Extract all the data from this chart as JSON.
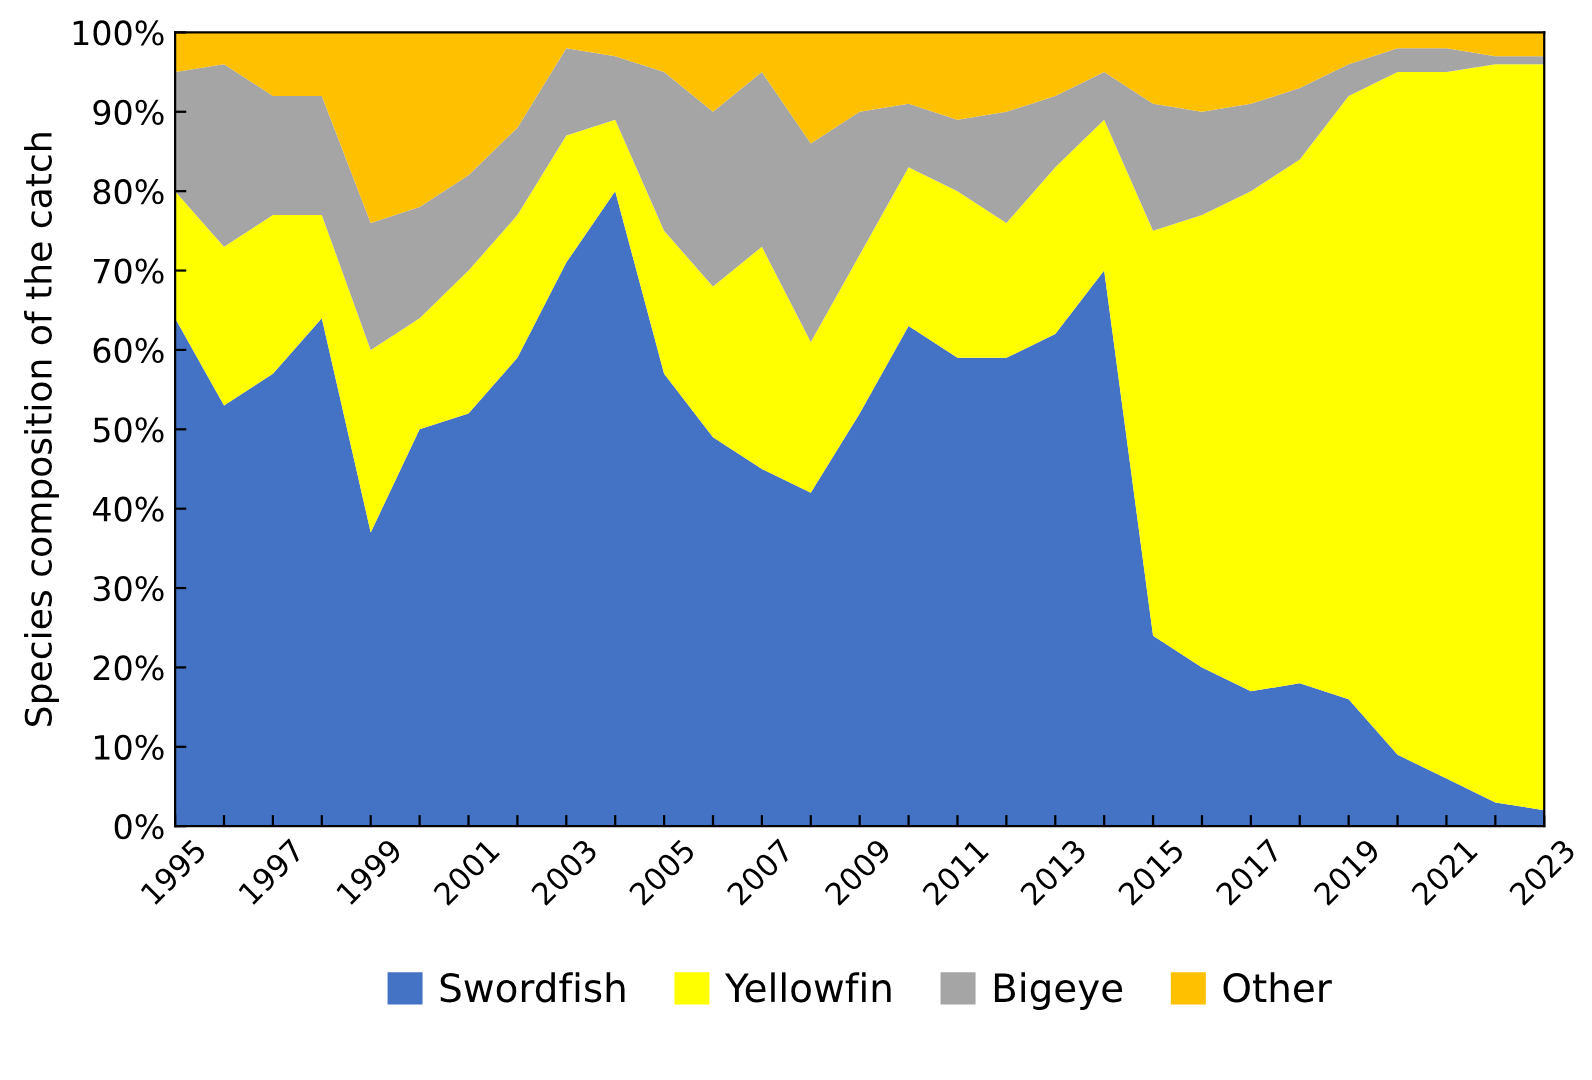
{
  "chart_data": {
    "type": "area",
    "stacked": true,
    "ylabel": "Species composition of the catch",
    "x": [
      1995,
      1996,
      1997,
      1998,
      1999,
      2000,
      2001,
      2002,
      2003,
      2004,
      2005,
      2006,
      2007,
      2008,
      2009,
      2010,
      2011,
      2012,
      2013,
      2014,
      2015,
      2016,
      2017,
      2018,
      2019,
      2020,
      2021,
      2022,
      2023
    ],
    "series": [
      {
        "name": "Swordfish",
        "color": "#4472c4",
        "values": [
          64,
          53,
          57,
          64,
          37,
          50,
          52,
          59,
          71,
          80,
          57,
          49,
          45,
          42,
          52,
          63,
          59,
          59,
          62,
          70,
          24,
          20,
          17,
          18,
          16,
          9,
          6,
          3,
          2
        ]
      },
      {
        "name": "Yellowfin",
        "color": "#ffff00",
        "values": [
          16,
          20,
          20,
          13,
          23,
          14,
          18,
          18,
          16,
          9,
          18,
          19,
          28,
          19,
          20,
          20,
          21,
          17,
          21,
          19,
          51,
          57,
          63,
          66,
          76,
          86,
          89,
          93,
          94
        ]
      },
      {
        "name": "Bigeye",
        "color": "#a5a5a5",
        "values": [
          15,
          23,
          15,
          15,
          16,
          14,
          12,
          11,
          11,
          8,
          20,
          22,
          22,
          25,
          18,
          8,
          9,
          14,
          9,
          6,
          16,
          13,
          11,
          9,
          4,
          3,
          3,
          1,
          1
        ]
      },
      {
        "name": "Other",
        "color": "#ffc000",
        "values": [
          5,
          4,
          8,
          8,
          24,
          22,
          18,
          12,
          2,
          3,
          5,
          10,
          5,
          14,
          10,
          9,
          11,
          10,
          8,
          5,
          9,
          10,
          9,
          7,
          4,
          2,
          2,
          3,
          3
        ]
      }
    ],
    "xlim": [
      1995,
      2023
    ],
    "xticks": [
      1995,
      {
        "value": 1996,
        "label": null
      },
      1997,
      {
        "value": 1998,
        "label": null
      },
      1999,
      {
        "value": 2000,
        "label": null
      },
      2001,
      {
        "value": 2002,
        "label": null
      },
      2003,
      {
        "value": 2004,
        "label": null
      },
      2005,
      {
        "value": 2006,
        "label": null
      },
      2007,
      {
        "value": 2008,
        "label": null
      },
      2009,
      {
        "value": 2010,
        "label": null
      },
      2011,
      {
        "value": 2012,
        "label": null
      },
      2013,
      {
        "value": 2014,
        "label": null
      },
      2015,
      {
        "value": 2016,
        "label": null
      },
      2017,
      {
        "value": 2018,
        "label": null
      },
      2019,
      {
        "value": 2020,
        "label": null
      },
      2021,
      {
        "value": 2022,
        "label": null
      },
      2023
    ],
    "ylim": [
      0,
      100
    ],
    "yticks": [
      {
        "value": 0,
        "label": "0%"
      },
      {
        "value": 10,
        "label": "10%"
      },
      {
        "value": 20,
        "label": "20%"
      },
      {
        "value": 30,
        "label": "30%"
      },
      {
        "value": 40,
        "label": "40%"
      },
      {
        "value": 50,
        "label": "50%"
      },
      {
        "value": 60,
        "label": "60%"
      },
      {
        "value": 70,
        "label": "70%"
      },
      {
        "value": 80,
        "label": "80%"
      },
      {
        "value": 90,
        "label": "90%"
      },
      {
        "value": 100,
        "label": "100%"
      }
    ],
    "grid": false,
    "legend": "bottom"
  }
}
